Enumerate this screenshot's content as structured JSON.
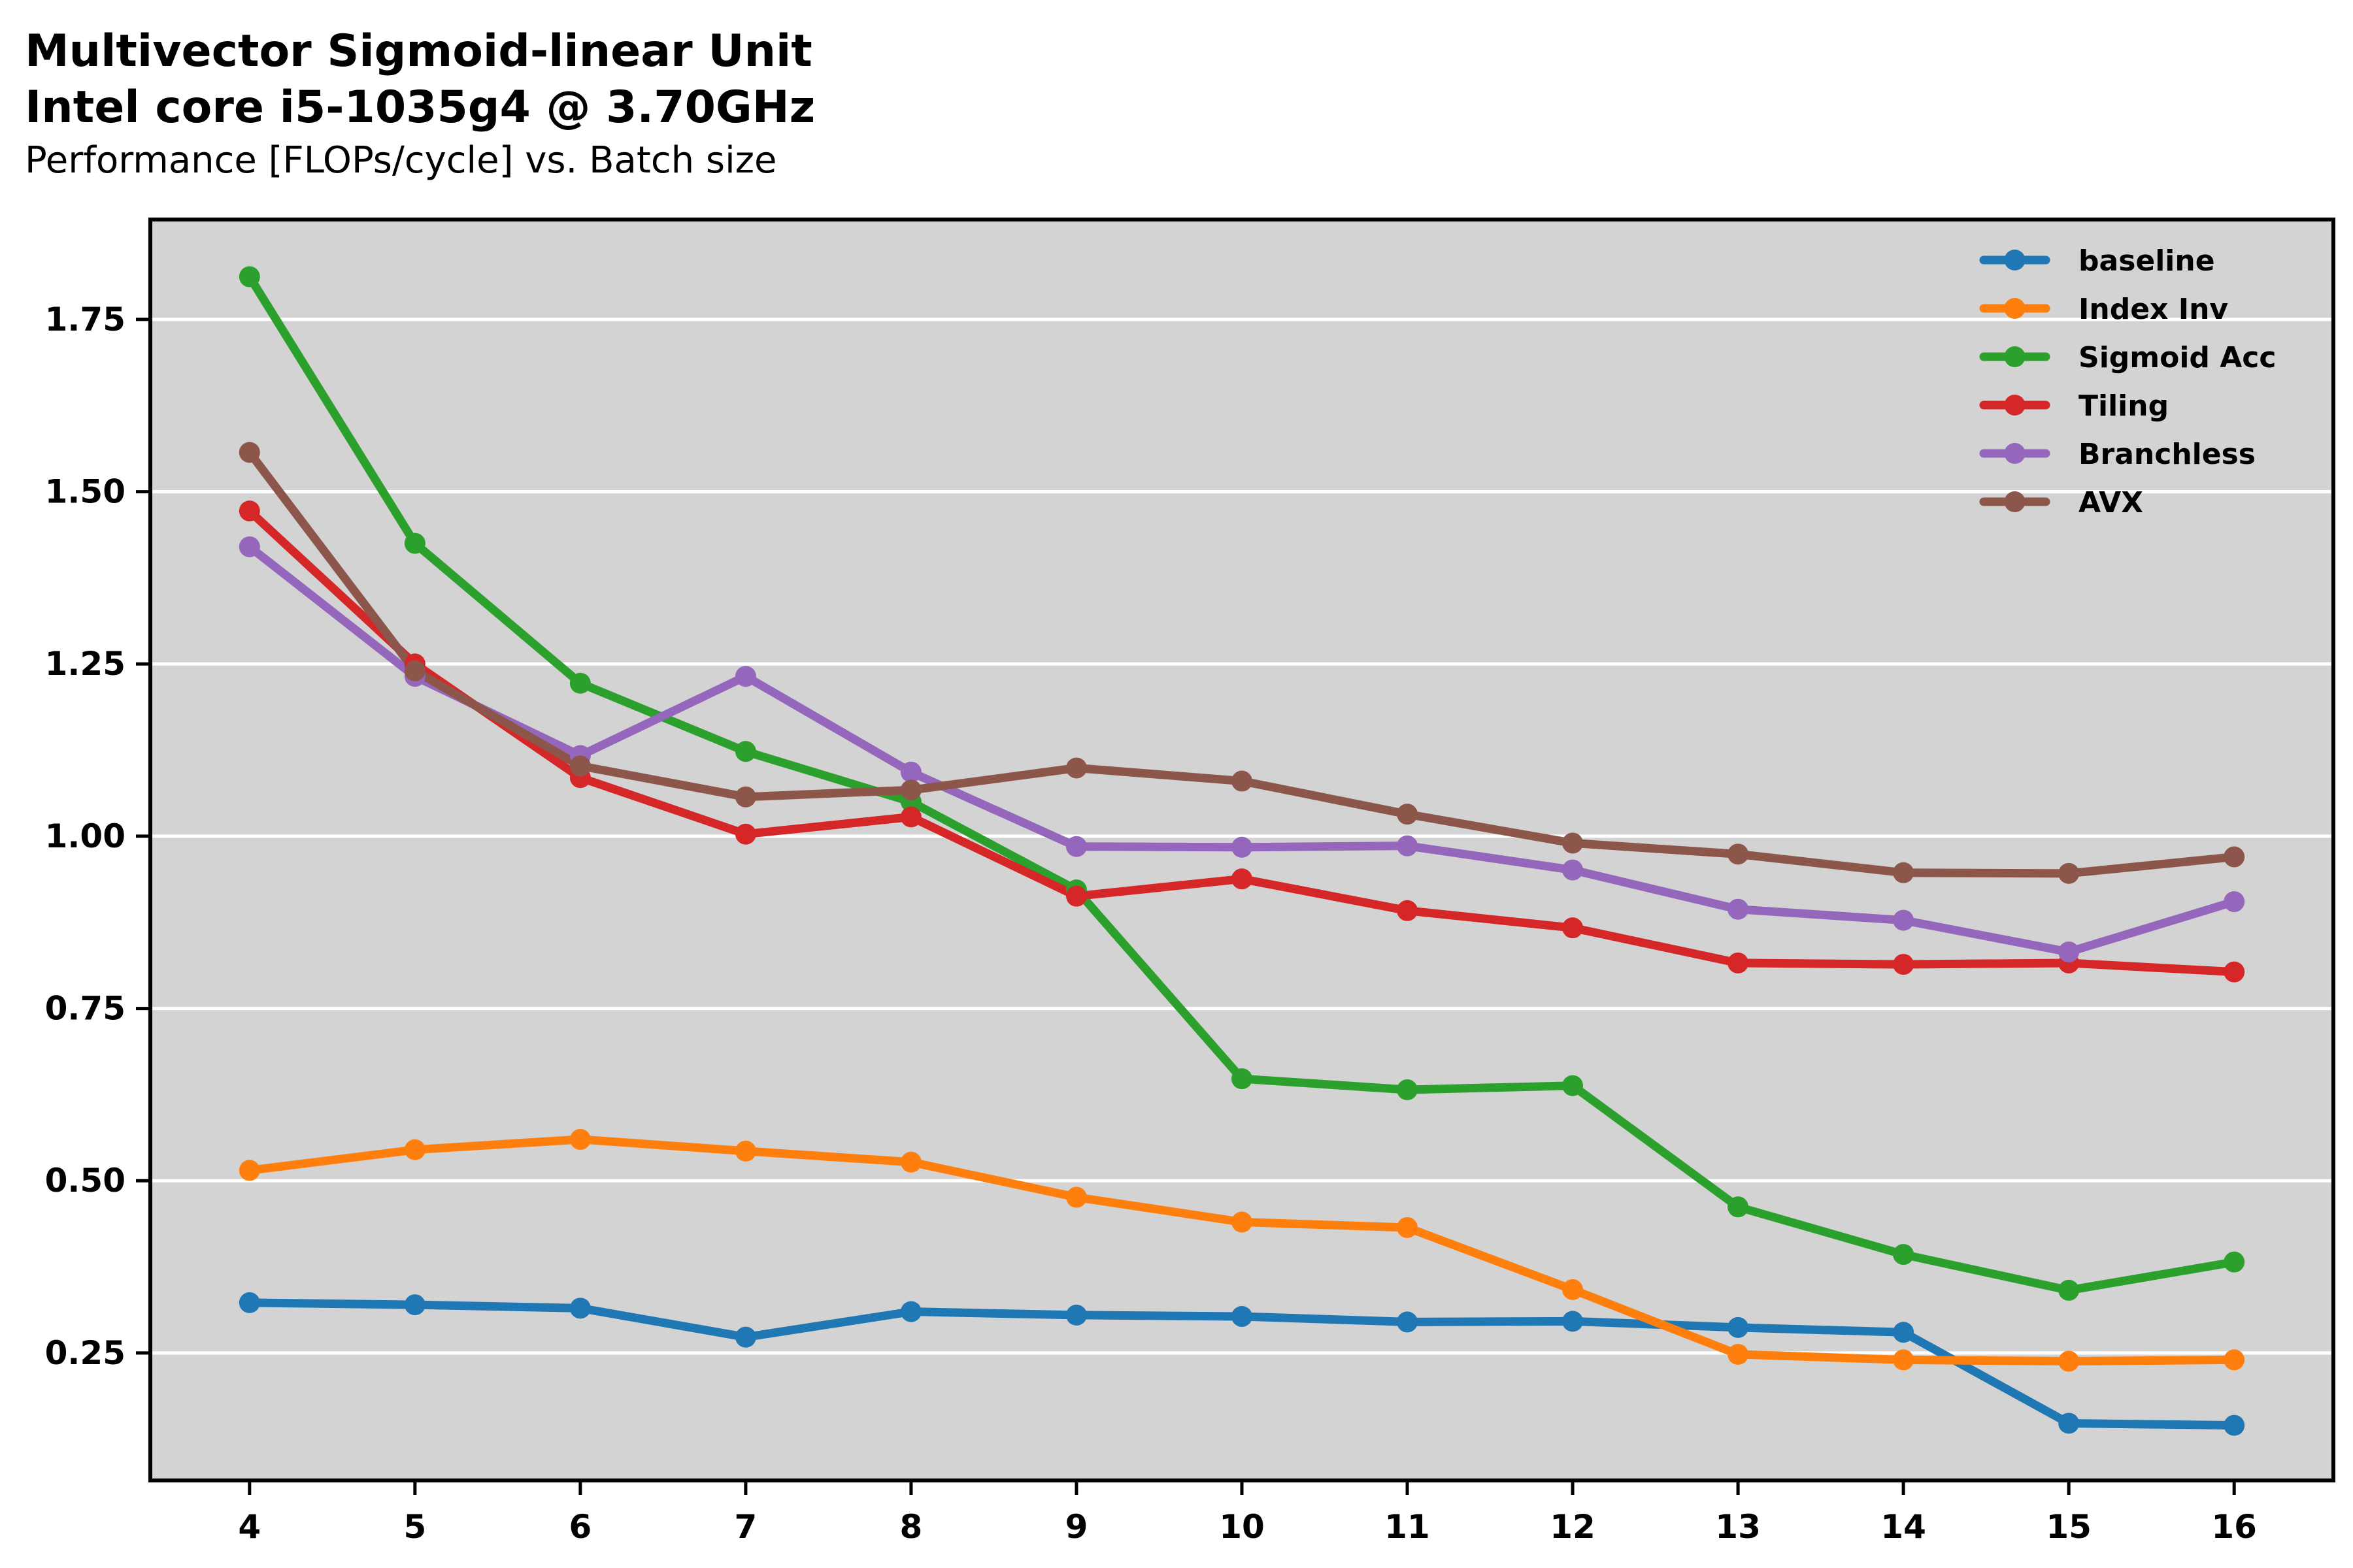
{
  "title_line1": "Multivector Sigmoid-linear Unit",
  "title_line2": "Intel core i5-1035g4 @ 3.70GHz",
  "subtitle": "Performance [FLOPs/cycle] vs. Batch size",
  "chart_data": {
    "type": "line",
    "x": [
      4,
      5,
      6,
      7,
      8,
      9,
      10,
      11,
      12,
      13,
      14,
      15,
      16
    ],
    "xlim": [
      3.4,
      16.6
    ],
    "ylim": [
      0.065,
      1.895
    ],
    "yticks": [
      0.25,
      0.5,
      0.75,
      1.0,
      1.25,
      1.5,
      1.75
    ],
    "ytick_labels": [
      "0.25",
      "0.50",
      "0.75",
      "1.00",
      "1.25",
      "1.50",
      "1.75"
    ],
    "xtick_labels": [
      "4",
      "5",
      "6",
      "7",
      "8",
      "9",
      "10",
      "11",
      "12",
      "13",
      "14",
      "15",
      "16"
    ],
    "xlabel": "",
    "ylabel": "",
    "grid": "horizontal",
    "background": "#d3d3d3",
    "legend_position": "top-right",
    "series": [
      {
        "name": "baseline",
        "color": "#1f77b4",
        "values": [
          0.323,
          0.32,
          0.315,
          0.273,
          0.31,
          0.305,
          0.303,
          0.295,
          0.296,
          0.287,
          0.28,
          0.148,
          0.145
        ]
      },
      {
        "name": "Index Inv",
        "color": "#ff7f0e",
        "values": [
          0.515,
          0.545,
          0.56,
          0.543,
          0.527,
          0.476,
          0.44,
          0.432,
          0.342,
          0.248,
          0.24,
          0.238,
          0.24
        ]
      },
      {
        "name": "Sigmoid Acc",
        "color": "#2ca02c",
        "values": [
          1.812,
          1.425,
          1.222,
          1.123,
          1.05,
          0.922,
          0.648,
          0.632,
          0.638,
          0.462,
          0.393,
          0.341,
          0.382
        ]
      },
      {
        "name": "Tiling",
        "color": "#d62728",
        "values": [
          1.472,
          1.25,
          1.085,
          1.003,
          1.028,
          0.913,
          0.938,
          0.892,
          0.867,
          0.816,
          0.814,
          0.816,
          0.803
        ]
      },
      {
        "name": "Branchless",
        "color": "#9467bd",
        "values": [
          1.42,
          1.232,
          1.117,
          1.232,
          1.093,
          0.985,
          0.984,
          0.986,
          0.951,
          0.894,
          0.878,
          0.832,
          0.905
        ]
      },
      {
        "name": "AVX",
        "color": "#8c564b",
        "values": [
          1.557,
          1.24,
          1.102,
          1.057,
          1.067,
          1.099,
          1.08,
          1.032,
          0.99,
          0.974,
          0.947,
          0.946,
          0.97
        ]
      }
    ]
  }
}
